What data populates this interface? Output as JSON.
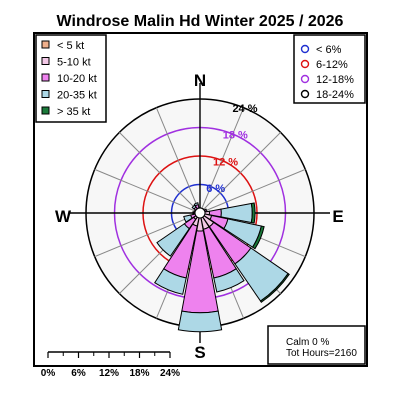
{
  "chart_data": {
    "type": "windrose",
    "title": "Windrose  Malin Hd Winter 2025 / 2026",
    "compass": {
      "n": "N",
      "s": "S",
      "e": "E",
      "w": "W"
    },
    "unit": "kt",
    "directions_deg": [
      0,
      22.5,
      45,
      67.5,
      90,
      112.5,
      135,
      157.5,
      180,
      202.5,
      225,
      247.5,
      270,
      292.5,
      315,
      337.5
    ],
    "speed_bins": [
      {
        "label": "< 5  kt",
        "color": "#f0b08c"
      },
      {
        "label": "5-10 kt",
        "color": "#f2c8e6"
      },
      {
        "label": "10-20 kt",
        "color": "#ee82ee"
      },
      {
        "label": "20-35 kt",
        "color": "#add8e6"
      },
      {
        "label": "> 35 kt",
        "color": "#1a7a3a"
      }
    ],
    "freq_cumulative_pct": [
      [
        0.3,
        0.9,
        1.1,
        1.1,
        1.1
      ],
      [
        0.3,
        0.7,
        0.8,
        0.8,
        0.8
      ],
      [
        0.3,
        1.0,
        1.1,
        1.1,
        1.1
      ],
      [
        0.4,
        1.2,
        1.5,
        1.5,
        1.5
      ],
      [
        0.5,
        2.0,
        4.5,
        11.0,
        11.6
      ],
      [
        0.7,
        2.5,
        6.0,
        13.2,
        13.8
      ],
      [
        0.9,
        3.5,
        13.0,
        22.5,
        22.8
      ],
      [
        0.9,
        3.5,
        14.0,
        17.0,
        17.0
      ],
      [
        0.9,
        3.8,
        21.0,
        25.0,
        25.0
      ],
      [
        0.7,
        2.8,
        14.0,
        17.5,
        17.5
      ],
      [
        0.5,
        1.6,
        4.0,
        11.0,
        11.0
      ],
      [
        0.4,
        1.0,
        2.0,
        3.5,
        3.5
      ],
      [
        0.3,
        0.9,
        1.3,
        1.5,
        1.5
      ],
      [
        0.3,
        0.7,
        1.0,
        1.2,
        1.2
      ],
      [
        0.3,
        1.0,
        1.5,
        2.0,
        2.0
      ],
      [
        0.4,
        1.1,
        1.8,
        2.2,
        2.2
      ]
    ],
    "rings": [
      {
        "value": 6,
        "label": "6 %",
        "color": "#1f2fd0"
      },
      {
        "value": 12,
        "label": "12 %",
        "color": "#dd1111"
      },
      {
        "value": 18,
        "label": "18 %",
        "color": "#a030e0"
      },
      {
        "value": 24,
        "label": "24 %",
        "color": "#000000"
      }
    ],
    "ring_legend": [
      {
        "label": "< 6%",
        "color": "#1f2fd0"
      },
      {
        "label": "6-12%",
        "color": "#dd1111"
      },
      {
        "label": "12-18%",
        "color": "#a030e0"
      },
      {
        "label": "18-24%",
        "color": "#000000"
      }
    ],
    "scale_labels": [
      "0%",
      "6%",
      "12%",
      "18%",
      "24%"
    ],
    "calm_text": "Calm 0 %",
    "tot_hours_text": "Tot Hours=2160"
  }
}
